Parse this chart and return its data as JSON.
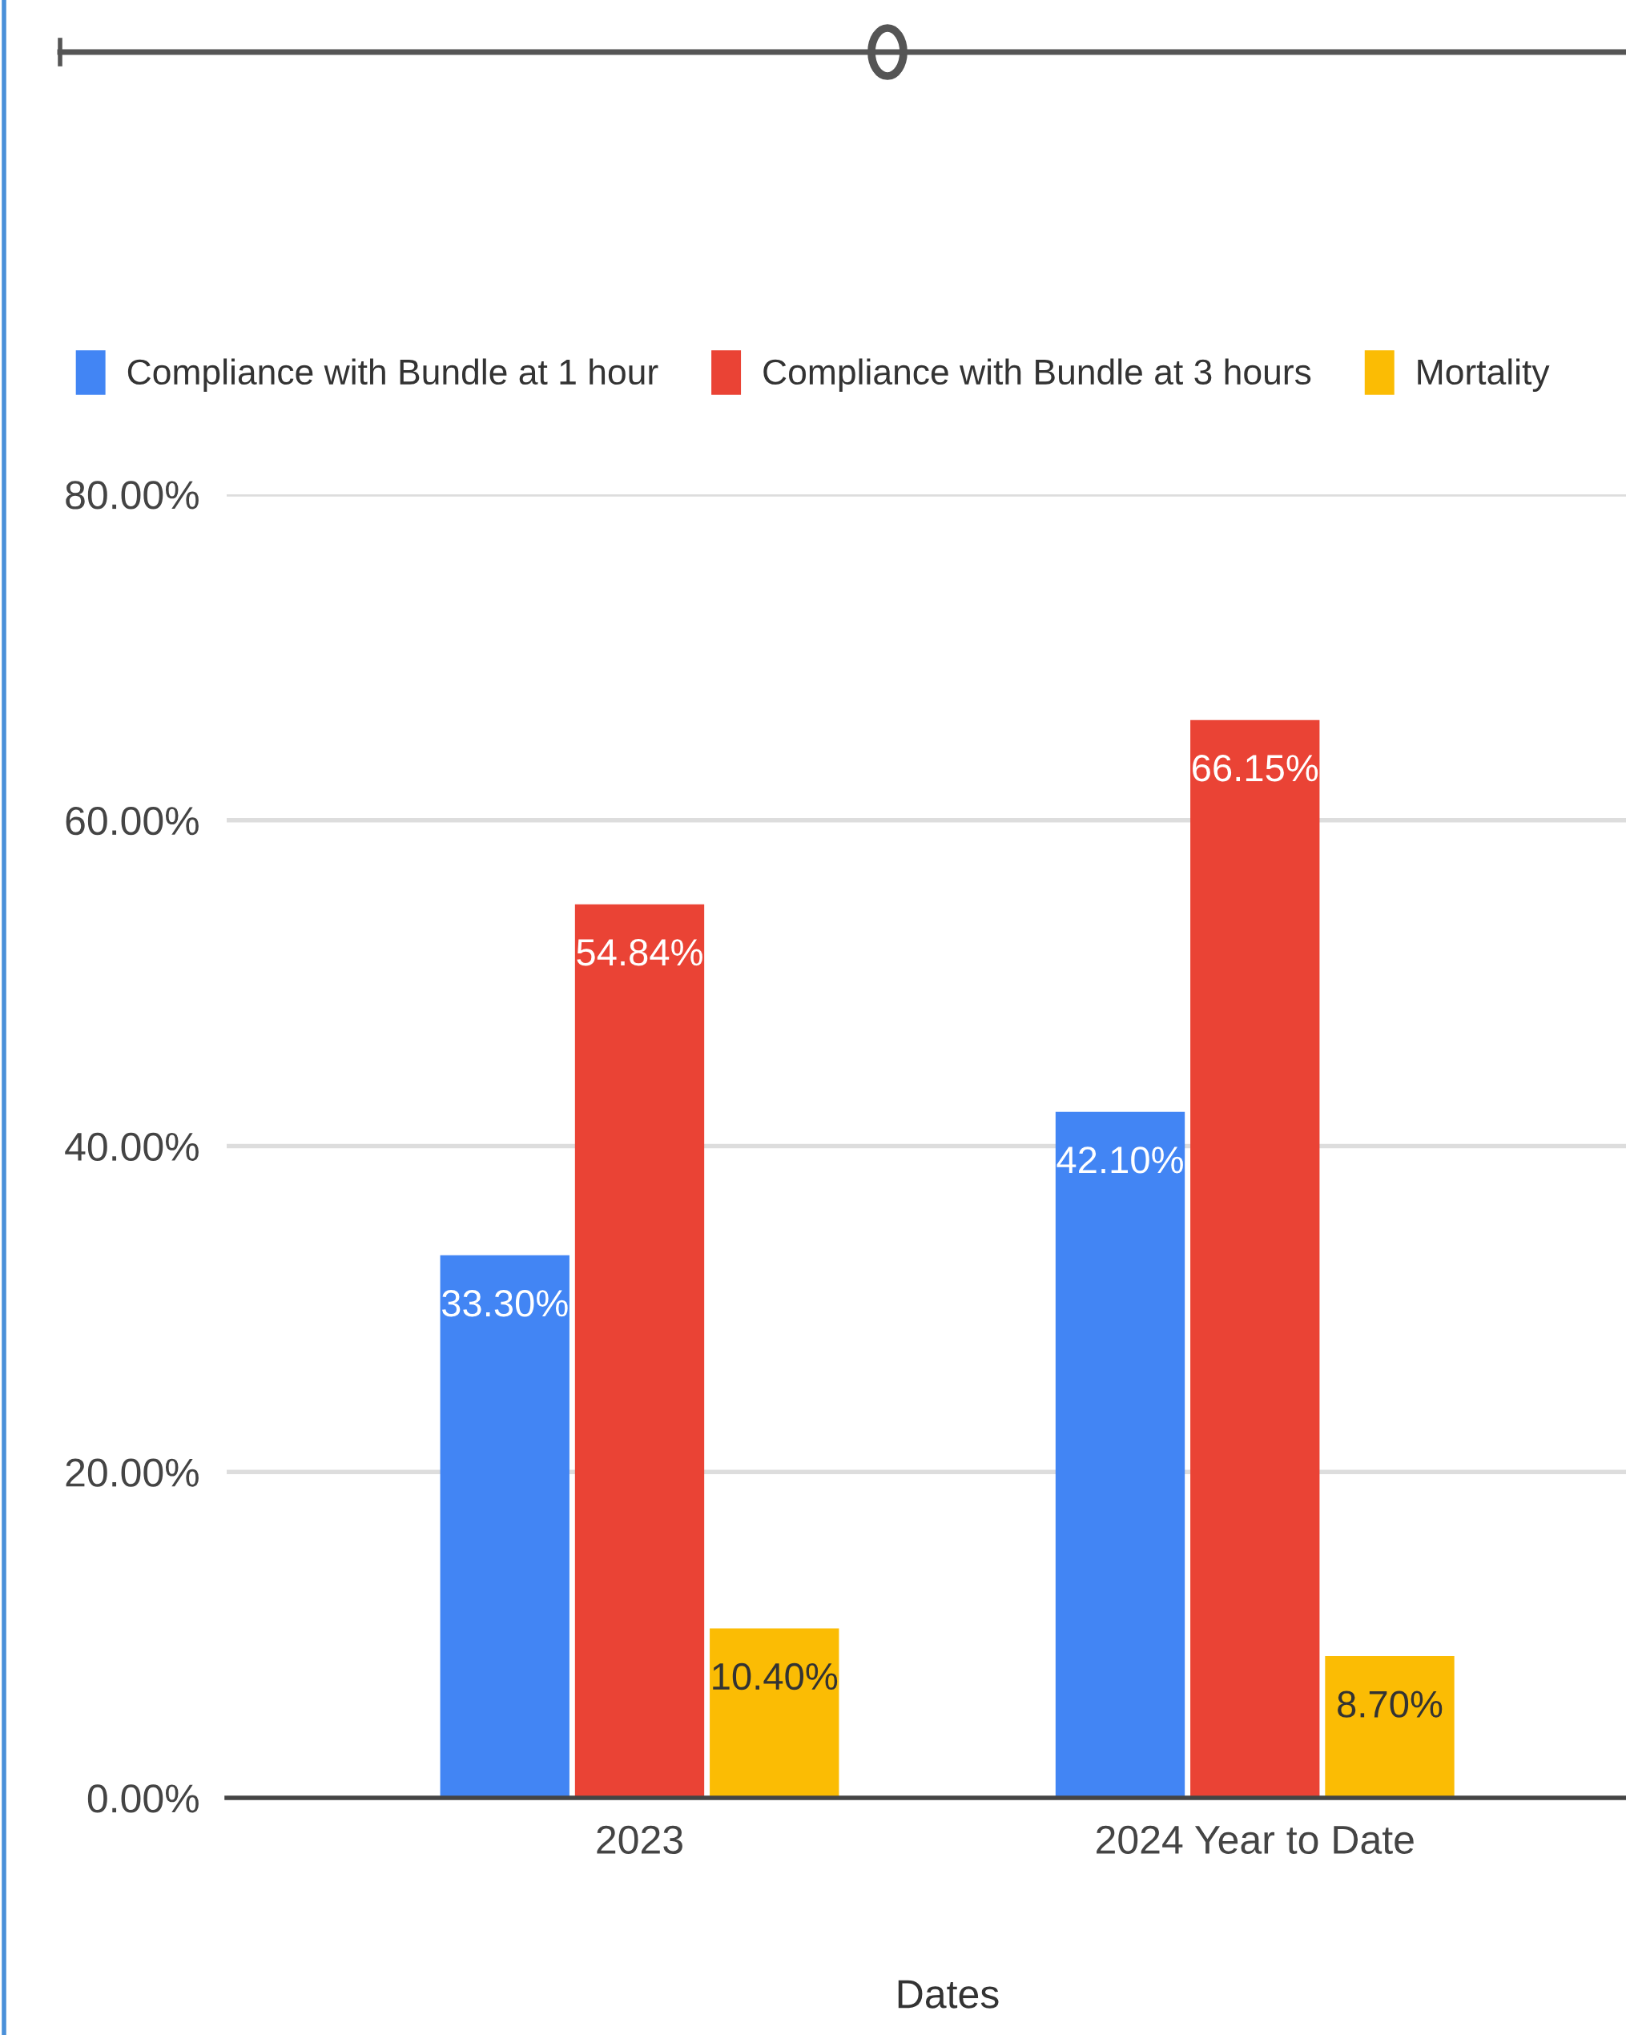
{
  "chart_data": {
    "type": "bar",
    "categories": [
      "2023",
      "2024 Year to Date"
    ],
    "xlabel": "Dates",
    "series": [
      {
        "name": "Compliance with Bundle at 1 hour",
        "color": "#4285f4",
        "values": [
          33.3,
          42.1
        ],
        "value_labels": [
          "33.30%",
          "42.10%"
        ]
      },
      {
        "name": "Compliance with Bundle at 3 hours",
        "color": "#ea4335",
        "values": [
          54.84,
          66.15
        ],
        "value_labels": [
          "54.84%",
          "66.15%"
        ]
      },
      {
        "name": "Mortality",
        "color": "#fbbc04",
        "values": [
          10.4,
          8.7
        ],
        "value_labels": [
          "10.40%",
          "8.70%"
        ]
      }
    ],
    "ylim": [
      0,
      80
    ],
    "yticks": [
      {
        "value": 0,
        "label": "0.00%"
      },
      {
        "value": 20,
        "label": "20.00%"
      },
      {
        "value": 40,
        "label": "40.00%"
      },
      {
        "value": 60,
        "label": "60.00%"
      },
      {
        "value": 80,
        "label": "80.00%"
      }
    ],
    "grid": "y",
    "legend": "top"
  }
}
